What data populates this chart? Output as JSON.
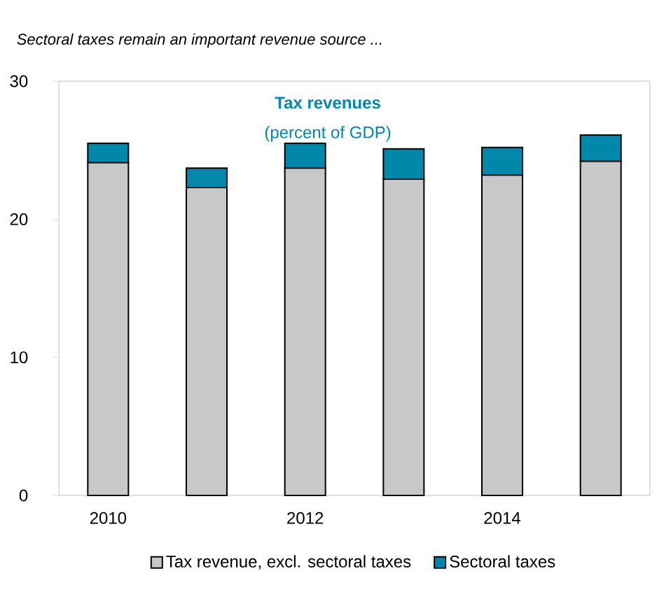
{
  "chart_data": {
    "type": "bar",
    "title": "Sectoral taxes remain an important revenue source ...",
    "annotations": [
      "Tax revenues",
      "(percent of GDP)"
    ],
    "categories": [
      "2010",
      null,
      "2012",
      null,
      "2014",
      null
    ],
    "stacked": true,
    "series": [
      {
        "name": "Tax revenue, excl. sectoral taxes",
        "color": "#c8c8c8",
        "values": [
          24.1,
          22.3,
          23.7,
          22.9,
          23.2,
          24.2
        ]
      },
      {
        "name": "Sectoral taxes",
        "color": "#0087aa",
        "values": [
          1.4,
          1.4,
          1.8,
          2.2,
          2.0,
          1.9
        ]
      }
    ],
    "ylim": [
      0,
      30
    ],
    "yticks": [
      0,
      10,
      20,
      30
    ],
    "legend": "bottom"
  }
}
